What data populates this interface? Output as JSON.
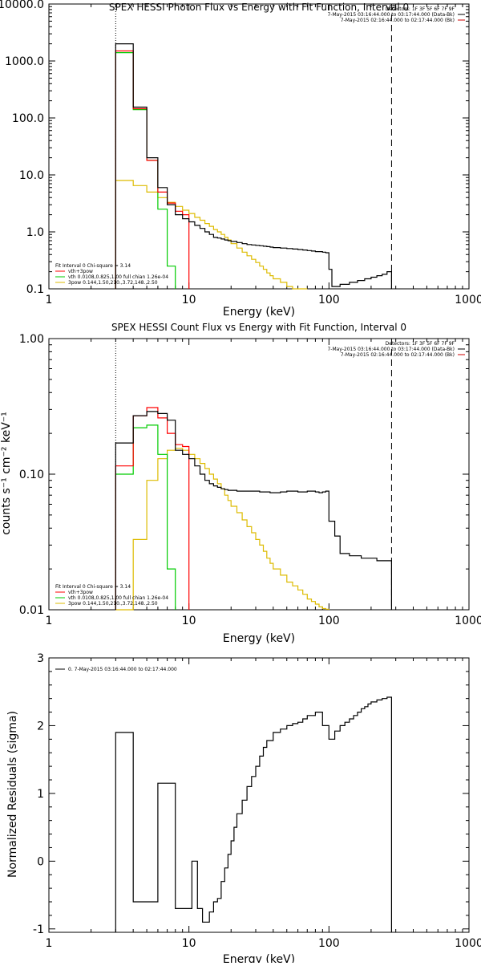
{
  "chart_data": [
    {
      "type": "line",
      "title": "SPEX HESSI Photon Flux vs Energy with Fit Function, Interval 0",
      "xlabel": "Energy (keV)",
      "ylabel": "",
      "xlim": [
        1,
        1000
      ],
      "ylim": [
        0.1,
        10000
      ],
      "x_scale": "log",
      "y_scale": "log",
      "x_ticks": [
        "1",
        "10",
        "100",
        "1000"
      ],
      "y_ticks": [
        "0.1",
        "1.0",
        "10.0",
        "100.0",
        "1000.0",
        "10000.0"
      ],
      "vlines": [
        {
          "x": 3,
          "style": "dotted"
        },
        {
          "x": 280,
          "style": "dashed"
        }
      ],
      "header": [
        {
          "text": "Detectors: 1F 3F 5F 6F 7F 9F",
          "color": ""
        },
        {
          "text": "7-May-2015 03:16:44.000 to 03:17:44.000 (Data-Bk)",
          "color": "#000000"
        },
        {
          "text": "7-May-2015 02:16:44.000 to 02:17:44.000 (Bk)",
          "color": "#cc0000"
        }
      ],
      "legend": {
        "position": "bottom-left",
        "lines": [
          {
            "text": "Fit Interval 0   Chi-square = 3.14",
            "color": ""
          },
          {
            "text": "vth+3pow",
            "color": "#ff0000"
          },
          {
            "text": "vth 0.0108,0.825,1.00  full chian 1.26e-04",
            "color": "#00cc00"
          },
          {
            "text": "3pow 0.144,1.50,210.,3.72,148.,2.50",
            "color": "#ddbb00"
          }
        ]
      },
      "series": [
        {
          "name": "Data-Bk",
          "color": "#000000",
          "step_x": [
            3,
            4,
            5,
            6,
            7,
            8,
            9,
            10,
            11,
            12,
            13,
            14,
            15,
            16,
            17,
            18,
            19,
            20,
            22,
            24,
            26,
            28,
            30,
            32,
            34,
            36,
            38,
            40,
            45,
            50,
            55,
            60,
            65,
            70,
            75,
            80,
            85,
            90,
            95,
            100,
            105,
            110,
            115,
            120,
            130,
            140,
            150,
            160,
            170,
            180,
            190,
            200,
            220,
            240,
            260,
            280
          ],
          "values": [
            2000,
            155,
            20,
            6,
            3.0,
            2.0,
            1.7,
            1.5,
            1.3,
            1.15,
            1.0,
            0.9,
            0.8,
            0.78,
            0.75,
            0.72,
            0.7,
            0.68,
            0.65,
            0.62,
            0.6,
            0.59,
            0.58,
            0.57,
            0.56,
            0.55,
            0.54,
            0.53,
            0.52,
            0.51,
            0.5,
            0.49,
            0.48,
            0.47,
            0.46,
            0.45,
            0.45,
            0.44,
            0.43,
            0.22,
            0.11,
            0.11,
            0.11,
            0.12,
            0.12,
            0.13,
            0.13,
            0.14,
            0.14,
            0.15,
            0.15,
            0.16,
            0.17,
            0.18,
            0.2
          ]
        },
        {
          "name": "vth+3pow",
          "color": "#ff0000",
          "step_x": [
            3,
            4,
            5,
            6,
            7,
            8,
            9,
            10
          ],
          "values": [
            1500,
            145,
            18,
            5.0,
            3.2,
            2.3,
            2.0
          ]
        },
        {
          "name": "vth",
          "color": "#00cc00",
          "step_x": [
            3,
            4,
            5,
            6,
            7,
            8
          ],
          "values": [
            1400,
            140,
            18,
            2.5,
            0.25
          ]
        },
        {
          "name": "3pow",
          "color": "#ddbb00",
          "step_x": [
            3,
            4,
            5,
            6,
            7,
            8,
            9,
            10,
            11,
            12,
            13,
            14,
            15,
            16,
            17,
            18,
            19,
            20,
            22,
            24,
            26,
            28,
            30,
            32,
            34,
            36,
            38,
            40,
            45,
            50,
            55,
            60,
            65,
            70
          ],
          "values": [
            8.0,
            6.5,
            5.0,
            4.0,
            3.3,
            2.8,
            2.4,
            2.1,
            1.8,
            1.6,
            1.4,
            1.25,
            1.1,
            1.0,
            0.9,
            0.8,
            0.72,
            0.62,
            0.52,
            0.44,
            0.38,
            0.33,
            0.29,
            0.25,
            0.22,
            0.19,
            0.17,
            0.15,
            0.13,
            0.11,
            0.1,
            0.09,
            0.08
          ]
        }
      ]
    },
    {
      "type": "line",
      "title": "SPEX HESSI Count Flux vs Energy with Fit Function, Interval 0",
      "xlabel": "Energy (keV)",
      "ylabel": "counts s⁻¹ cm⁻² keV⁻¹",
      "xlim": [
        1,
        1000
      ],
      "ylim": [
        0.01,
        1.0
      ],
      "x_scale": "log",
      "y_scale": "log",
      "x_ticks": [
        "1",
        "10",
        "100",
        "1000"
      ],
      "y_ticks": [
        "0.01",
        "0.10",
        "1.00"
      ],
      "vlines": [
        {
          "x": 3,
          "style": "dotted"
        },
        {
          "x": 280,
          "style": "dashed"
        }
      ],
      "header": [
        {
          "text": "Detectors: 1F 3F 5F 6F 7F 9F",
          "color": ""
        },
        {
          "text": "7-May-2015 03:16:44.000 to 03:17:44.000 (Data-Bk)",
          "color": "#000000"
        },
        {
          "text": "7-May-2015 02:16:44.000 to 02:17:44.000 (Bk)",
          "color": "#cc0000"
        }
      ],
      "legend": {
        "position": "bottom-left",
        "lines": [
          {
            "text": "Fit Interval 0   Chi-square = 3.14",
            "color": ""
          },
          {
            "text": "vth+3pow",
            "color": "#ff0000"
          },
          {
            "text": "vth 0.0108,0.825,1.00  full chian 1.26e-04",
            "color": "#00cc00"
          },
          {
            "text": "3pow 0.144,1.50,210.,3.72,148.,2.50",
            "color": "#ddbb00"
          }
        ]
      },
      "series": [
        {
          "name": "Data-Bk",
          "color": "#000000",
          "step_x": [
            3,
            4,
            5,
            6,
            7,
            8,
            9,
            10,
            11,
            12,
            13,
            14,
            15,
            16,
            17,
            18,
            19,
            20,
            22,
            24,
            26,
            28,
            30,
            32,
            34,
            36,
            38,
            40,
            45,
            50,
            55,
            60,
            65,
            70,
            75,
            80,
            85,
            90,
            95,
            100,
            110,
            120,
            130,
            140,
            150,
            160,
            170,
            180,
            190,
            200,
            220,
            240,
            260,
            280
          ],
          "values": [
            0.17,
            0.27,
            0.29,
            0.28,
            0.25,
            0.15,
            0.14,
            0.13,
            0.115,
            0.1,
            0.09,
            0.085,
            0.082,
            0.08,
            0.078,
            0.077,
            0.076,
            0.076,
            0.075,
            0.075,
            0.075,
            0.075,
            0.075,
            0.074,
            0.074,
            0.074,
            0.073,
            0.073,
            0.074,
            0.075,
            0.075,
            0.074,
            0.074,
            0.075,
            0.075,
            0.074,
            0.073,
            0.074,
            0.075,
            0.045,
            0.035,
            0.026,
            0.026,
            0.025,
            0.025,
            0.025,
            0.024,
            0.024,
            0.024,
            0.024,
            0.023,
            0.023,
            0.023
          ]
        },
        {
          "name": "vth+3pow",
          "color": "#ff0000",
          "step_x": [
            3,
            4,
            5,
            6,
            7,
            8,
            9,
            10
          ],
          "values": [
            0.115,
            0.27,
            0.31,
            0.26,
            0.2,
            0.165,
            0.16
          ]
        },
        {
          "name": "vth",
          "color": "#00cc00",
          "step_x": [
            3,
            4,
            5,
            6,
            7,
            8
          ],
          "values": [
            0.1,
            0.22,
            0.23,
            0.14,
            0.02
          ]
        },
        {
          "name": "3pow",
          "color": "#ddbb00",
          "step_x": [
            3,
            4,
            5,
            6,
            7,
            8,
            9,
            10,
            11,
            12,
            13,
            14,
            15,
            16,
            17,
            18,
            19,
            20,
            22,
            24,
            26,
            28,
            30,
            32,
            34,
            36,
            38,
            40,
            45,
            50,
            55,
            60,
            65,
            70,
            75,
            80,
            85,
            90,
            95,
            100
          ],
          "values": [
            0.01,
            0.033,
            0.09,
            0.13,
            0.15,
            0.155,
            0.15,
            0.14,
            0.13,
            0.12,
            0.11,
            0.1,
            0.092,
            0.085,
            0.078,
            0.07,
            0.064,
            0.058,
            0.052,
            0.046,
            0.041,
            0.037,
            0.033,
            0.03,
            0.027,
            0.024,
            0.022,
            0.02,
            0.018,
            0.016,
            0.015,
            0.014,
            0.013,
            0.012,
            0.0115,
            0.011,
            0.0105,
            0.0102,
            0.0101
          ]
        }
      ]
    },
    {
      "type": "line",
      "title": "",
      "xlabel": "Energy (keV)",
      "ylabel": "Normalized Residuals (sigma)",
      "xlim": [
        1,
        1000
      ],
      "ylim": [
        -1.05,
        3
      ],
      "x_scale": "log",
      "y_scale": "linear",
      "x_ticks": [
        "1",
        "10",
        "100",
        "1000"
      ],
      "y_ticks": [
        "-1",
        "0",
        "1",
        "2",
        "3"
      ],
      "legend": {
        "position": "top-left",
        "lines": [
          {
            "text": "0.  7-May-2015 03:16:44.000 to 02:17:44.000",
            "color": "#000000"
          }
        ]
      },
      "series": [
        {
          "name": "0.",
          "color": "#000000",
          "step_x": [
            3,
            4,
            6,
            8,
            9.5,
            10.5,
            11.5,
            12.5,
            14,
            15,
            16,
            17,
            18,
            19,
            20,
            21,
            22,
            24,
            26,
            28,
            30,
            32,
            34,
            36,
            40,
            45,
            50,
            55,
            60,
            65,
            70,
            80,
            90,
            100,
            110,
            120,
            130,
            140,
            150,
            160,
            170,
            180,
            190,
            200,
            220,
            240,
            260,
            280
          ],
          "values": [
            1.9,
            -0.6,
            1.15,
            -0.7,
            -0.7,
            0.0,
            -0.7,
            -0.9,
            -0.75,
            -0.6,
            -0.55,
            -0.3,
            -0.1,
            0.1,
            0.3,
            0.5,
            0.7,
            0.9,
            1.1,
            1.25,
            1.4,
            1.55,
            1.68,
            1.78,
            1.9,
            1.95,
            2.0,
            2.03,
            2.05,
            2.1,
            2.15,
            2.2,
            2.0,
            1.8,
            1.92,
            2.0,
            2.05,
            2.1,
            2.15,
            2.2,
            2.25,
            2.28,
            2.32,
            2.35,
            2.38,
            2.4,
            2.42
          ]
        }
      ]
    }
  ]
}
